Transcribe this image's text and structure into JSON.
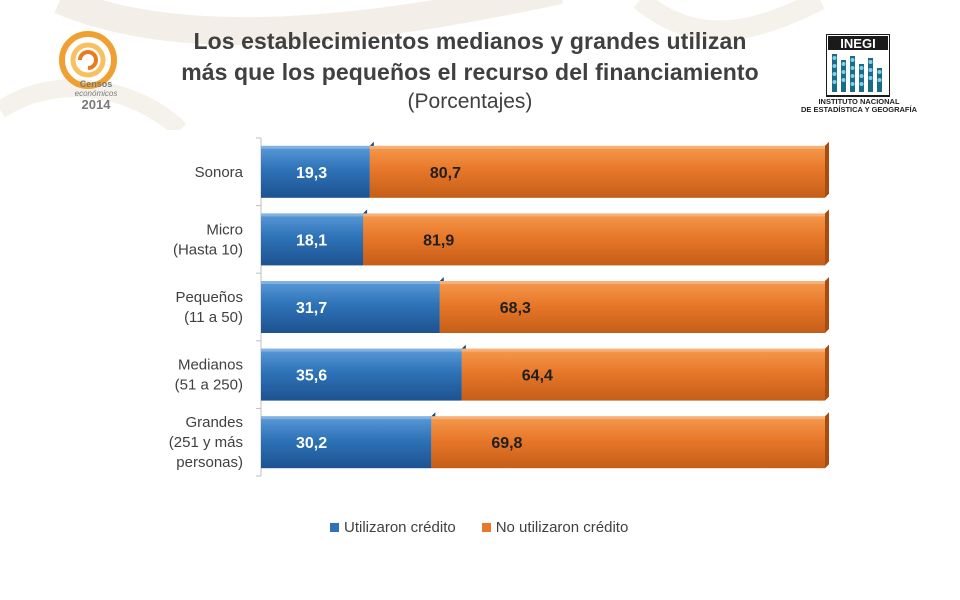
{
  "header": {
    "title_line1": "Los establecimientos medianos y grandes utilizan",
    "title_line2": "más que los pequeños el recurso del financiamiento",
    "subtitle": "(Porcentajes)"
  },
  "logos": {
    "left": {
      "line1": "Censos",
      "line2": "económicos",
      "line3": "2014"
    },
    "right": {
      "name": "INEGI",
      "line1": "INSTITUTO NACIONAL",
      "line2": "DE ESTADÍSTICA Y GEOGRAFÍA"
    }
  },
  "chart_data": {
    "type": "bar",
    "orientation": "horizontal",
    "stacked": true,
    "categories": [
      [
        "Sonora"
      ],
      [
        "Micro",
        "(Hasta 10)"
      ],
      [
        "Pequeños",
        "(11 a 50)"
      ],
      [
        "Medianos",
        "(51 a 250)"
      ],
      [
        "Grandes",
        "(251 y más",
        "personas)"
      ]
    ],
    "series": [
      {
        "name": "Utilizaron crédito",
        "values": [
          19.3,
          18.1,
          31.7,
          35.6,
          30.2
        ],
        "labels": [
          "19,3",
          "18,1",
          "31,7",
          "35,6",
          "30,2"
        ],
        "color": "#2e73b8"
      },
      {
        "name": "No utilizaron crédito",
        "values": [
          80.7,
          81.9,
          68.3,
          64.4,
          69.8
        ],
        "labels": [
          "80,7",
          "81,9",
          "68,3",
          "64,4",
          "69,8"
        ],
        "color": "#e8782a"
      }
    ],
    "xlim": [
      0,
      100
    ],
    "grid": false,
    "legend_position": "bottom"
  }
}
